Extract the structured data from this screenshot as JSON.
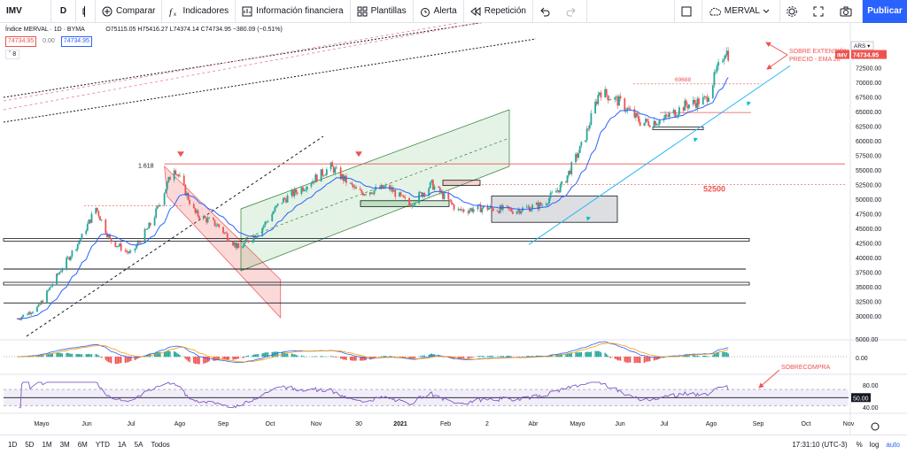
{
  "toolbar": {
    "symbol": "IMV",
    "interval": "D",
    "compare": "Comparar",
    "indicators": "Indicadores",
    "financials": "Información financiera",
    "templates": "Plantillas",
    "alert": "Alerta",
    "replay": "Repetición",
    "layout_name": "MERVAL",
    "publish": "Publicar"
  },
  "legend": {
    "title": "Índice MERVAL · 1D · BYMA",
    "ohlc": "O75115.05 H75416.27 L74374.14 C74734.95 −380.09 (−0.51%)",
    "bid": "74734.95",
    "spread": "0.00",
    "ask": "74734.95",
    "study_count": "8"
  },
  "currency": "ARS",
  "colors": {
    "up": "#26a69a",
    "down": "#ef5350",
    "ema": "#2962ff",
    "rsi": "#7e57c2",
    "accent": "#2962ff"
  },
  "annotations": {
    "fib": "1.618",
    "level_69688": "69688",
    "level_52500": "52500",
    "overextension_line1": "SOBRE EXTENSIÓN",
    "overextension_line2": "PRECIO - EMA 20",
    "overbought": "SOBRECOMPRA"
  },
  "price_axis": {
    "ticks": [
      "75000.00",
      "72500.00",
      "70000.00",
      "67500.00",
      "65000.00",
      "62500.00",
      "60000.00",
      "57500.00",
      "55000.00",
      "52500.00",
      "50000.00",
      "47500.00",
      "45000.00",
      "42500.00",
      "40000.00",
      "37500.00",
      "35000.00",
      "32500.00",
      "30000.00"
    ],
    "last_label": "IMV",
    "last_value": "74734.95"
  },
  "macd_axis": {
    "ticks": [
      "5000.00",
      "0.00"
    ]
  },
  "rsi_axis": {
    "ticks": [
      "80.00",
      "50.00",
      "40.00"
    ],
    "current": "50.00"
  },
  "time_axis": [
    "Mayo",
    "Jun",
    "Jul",
    "Ago",
    "Sep",
    "Oct",
    "Nov",
    "30",
    "2021",
    "Feb",
    "2",
    "Abr",
    "Mayo",
    "Jun",
    "Jul",
    "Ago",
    "Sep",
    "Oct",
    "Nov"
  ],
  "bottom": {
    "ranges": [
      "1D",
      "5D",
      "1M",
      "3M",
      "6M",
      "YTD",
      "1A",
      "5A",
      "Todos"
    ],
    "time": "17:31:10 (UTC-3)",
    "percent": "%",
    "log": "log",
    "auto": "auto"
  },
  "chart_data": {
    "type": "candlestick",
    "title": "Índice MERVAL · 1D · BYMA",
    "y_range": [
      28000,
      78000
    ],
    "series_close": [
      {
        "date": "2020-04-20",
        "value": 29500
      },
      {
        "date": "2020-05-05",
        "value": 31500
      },
      {
        "date": "2020-05-20",
        "value": 37500
      },
      {
        "date": "2020-06-05",
        "value": 43500
      },
      {
        "date": "2020-06-15",
        "value": 48500
      },
      {
        "date": "2020-06-25",
        "value": 43000
      },
      {
        "date": "2020-07-10",
        "value": 40500
      },
      {
        "date": "2020-07-25",
        "value": 46000
      },
      {
        "date": "2020-08-10",
        "value": 55500
      },
      {
        "date": "2020-08-25",
        "value": 47500
      },
      {
        "date": "2020-09-10",
        "value": 45500
      },
      {
        "date": "2020-09-25",
        "value": 41500
      },
      {
        "date": "2020-10-10",
        "value": 44500
      },
      {
        "date": "2020-10-25",
        "value": 49500
      },
      {
        "date": "2020-11-10",
        "value": 52000
      },
      {
        "date": "2020-11-30",
        "value": 55500
      },
      {
        "date": "2020-12-20",
        "value": 51000
      },
      {
        "date": "2021-01-10",
        "value": 52000
      },
      {
        "date": "2021-01-25",
        "value": 49000
      },
      {
        "date": "2021-02-10",
        "value": 52500
      },
      {
        "date": "2021-03-01",
        "value": 48000
      },
      {
        "date": "2021-03-20",
        "value": 48500
      },
      {
        "date": "2021-04-10",
        "value": 48000
      },
      {
        "date": "2021-04-30",
        "value": 49000
      },
      {
        "date": "2021-05-15",
        "value": 52500
      },
      {
        "date": "2021-05-30",
        "value": 60000
      },
      {
        "date": "2021-06-10",
        "value": 68500
      },
      {
        "date": "2021-06-25",
        "value": 66500
      },
      {
        "date": "2021-07-10",
        "value": 63000
      },
      {
        "date": "2021-07-25",
        "value": 63500
      },
      {
        "date": "2021-08-10",
        "value": 66000
      },
      {
        "date": "2021-08-25",
        "value": 67000
      },
      {
        "date": "2021-09-03",
        "value": 72500
      },
      {
        "date": "2021-09-08",
        "value": 75500
      },
      {
        "date": "2021-09-10",
        "value": 74734.95
      }
    ],
    "indicators": [
      "EMA 20",
      "MACD",
      "RSI"
    ],
    "horizontal_levels": [
      56000,
      52500,
      43000,
      38000,
      35500,
      32200
    ],
    "rsi_levels": [
      70,
      50,
      30
    ]
  }
}
